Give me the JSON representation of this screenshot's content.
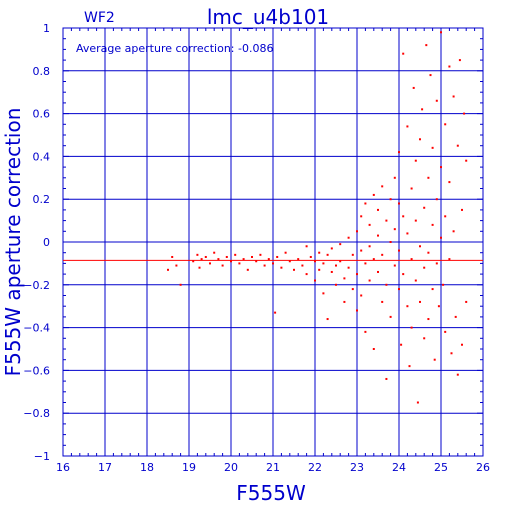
{
  "chart_data": {
    "type": "scatter",
    "title": "lmc_u4b101",
    "chip_label": "WF2",
    "annotation": "Average aperture correction:  -0.086",
    "xlabel": "F555W",
    "ylabel": "F555W aperture correction",
    "xlim": [
      16,
      26
    ],
    "ylim": [
      -1,
      1
    ],
    "x_ticks": [
      16,
      17,
      18,
      19,
      20,
      21,
      22,
      23,
      24,
      25,
      26
    ],
    "y_ticks": [
      -1,
      -0.8,
      -0.6,
      -0.4,
      -0.2,
      0,
      0.2,
      0.4,
      0.6,
      0.8,
      1
    ],
    "x_tick_labels": [
      "16",
      "17",
      "18",
      "19",
      "20",
      "21",
      "22",
      "23",
      "24",
      "25",
      "26"
    ],
    "y_tick_labels": [
      "−1",
      "−0.8",
      "−0.6",
      "−0.4",
      "−0.2",
      "0",
      "0.2",
      "0.4",
      "0.6",
      "0.8",
      "1"
    ],
    "grid": true,
    "average_line": -0.086,
    "colors": {
      "axes": "#0000cc",
      "points": "#ff0000",
      "average_line": "#ff0000"
    },
    "points": [
      [
        18.5,
        -0.13
      ],
      [
        18.6,
        -0.07
      ],
      [
        18.7,
        -0.11
      ],
      [
        18.8,
        -0.2
      ],
      [
        19.1,
        -0.09
      ],
      [
        19.2,
        -0.06
      ],
      [
        19.25,
        -0.12
      ],
      [
        19.3,
        -0.08
      ],
      [
        19.4,
        -0.07
      ],
      [
        19.5,
        -0.1
      ],
      [
        19.6,
        -0.05
      ],
      [
        19.7,
        -0.08
      ],
      [
        19.8,
        -0.11
      ],
      [
        19.9,
        -0.07
      ],
      [
        20.0,
        -0.09
      ],
      [
        20.1,
        -0.06
      ],
      [
        20.2,
        -0.1
      ],
      [
        20.3,
        -0.08
      ],
      [
        20.4,
        -0.13
      ],
      [
        20.5,
        -0.07
      ],
      [
        20.6,
        -0.09
      ],
      [
        20.7,
        -0.06
      ],
      [
        20.8,
        -0.11
      ],
      [
        20.9,
        -0.08
      ],
      [
        21.0,
        -0.1
      ],
      [
        21.05,
        -0.33
      ],
      [
        21.1,
        -0.07
      ],
      [
        21.2,
        -0.12
      ],
      [
        21.3,
        -0.05
      ],
      [
        21.4,
        -0.09
      ],
      [
        21.5,
        -0.13
      ],
      [
        21.6,
        -0.08
      ],
      [
        21.7,
        -0.11
      ],
      [
        21.8,
        -0.02
      ],
      [
        21.8,
        -0.15
      ],
      [
        21.9,
        -0.07
      ],
      [
        22.0,
        -0.18
      ],
      [
        22.0,
        -0.09
      ],
      [
        22.1,
        -0.05
      ],
      [
        22.1,
        -0.13
      ],
      [
        22.2,
        -0.1
      ],
      [
        22.2,
        -0.24
      ],
      [
        22.3,
        -0.06
      ],
      [
        22.3,
        -0.36
      ],
      [
        22.4,
        -0.14
      ],
      [
        22.4,
        -0.03
      ],
      [
        22.5,
        -0.11
      ],
      [
        22.5,
        -0.2
      ],
      [
        22.6,
        -0.01
      ],
      [
        22.6,
        -0.09
      ],
      [
        22.7,
        -0.17
      ],
      [
        22.7,
        -0.28
      ],
      [
        22.8,
        0.02
      ],
      [
        22.8,
        -0.12
      ],
      [
        22.9,
        -0.06
      ],
      [
        22.9,
        -0.22
      ],
      [
        23.0,
        0.05
      ],
      [
        23.0,
        -0.15
      ],
      [
        23.0,
        -0.32
      ],
      [
        23.1,
        -0.04
      ],
      [
        23.1,
        0.12
      ],
      [
        23.1,
        -0.25
      ],
      [
        23.2,
        -0.1
      ],
      [
        23.2,
        0.18
      ],
      [
        23.2,
        -0.42
      ],
      [
        23.3,
        -0.02
      ],
      [
        23.3,
        0.08
      ],
      [
        23.3,
        -0.18
      ],
      [
        23.4,
        0.22
      ],
      [
        23.4,
        -0.08
      ],
      [
        23.4,
        -0.5
      ],
      [
        23.5,
        0.03
      ],
      [
        23.5,
        -0.14
      ],
      [
        23.5,
        0.15
      ],
      [
        23.6,
        -0.28
      ],
      [
        23.6,
        -0.06
      ],
      [
        23.6,
        0.26
      ],
      [
        23.7,
        0.1
      ],
      [
        23.7,
        -0.2
      ],
      [
        23.7,
        -0.64
      ],
      [
        23.8,
        0.0
      ],
      [
        23.8,
        0.2
      ],
      [
        23.8,
        -0.35
      ],
      [
        23.9,
        -0.11
      ],
      [
        23.9,
        0.3
      ],
      [
        23.9,
        0.06
      ],
      [
        24.0,
        -0.04
      ],
      [
        24.0,
        0.18
      ],
      [
        24.0,
        -0.22
      ],
      [
        24.0,
        0.42
      ],
      [
        24.05,
        -0.48
      ],
      [
        24.1,
        0.12
      ],
      [
        24.1,
        -0.15
      ],
      [
        24.1,
        0.88
      ],
      [
        24.2,
        -0.3
      ],
      [
        24.2,
        0.04
      ],
      [
        24.2,
        0.54
      ],
      [
        24.25,
        -0.58
      ],
      [
        24.3,
        0.25
      ],
      [
        24.3,
        -0.08
      ],
      [
        24.3,
        -0.4
      ],
      [
        24.35,
        0.72
      ],
      [
        24.4,
        0.1
      ],
      [
        24.4,
        -0.18
      ],
      [
        24.4,
        0.38
      ],
      [
        24.45,
        -0.75
      ],
      [
        24.5,
        -0.02
      ],
      [
        24.5,
        0.48
      ],
      [
        24.5,
        -0.28
      ],
      [
        24.55,
        0.62
      ],
      [
        24.6,
        0.16
      ],
      [
        24.6,
        -0.12
      ],
      [
        24.6,
        -0.45
      ],
      [
        24.65,
        0.92
      ],
      [
        24.7,
        0.3
      ],
      [
        24.7,
        -0.05
      ],
      [
        24.7,
        -0.36
      ],
      [
        24.75,
        0.78
      ],
      [
        24.8,
        0.08
      ],
      [
        24.8,
        -0.22
      ],
      [
        24.8,
        0.44
      ],
      [
        24.85,
        -0.55
      ],
      [
        24.9,
        0.2
      ],
      [
        24.9,
        -0.1
      ],
      [
        24.9,
        0.66
      ],
      [
        24.95,
        -0.3
      ],
      [
        25.0,
        0.02
      ],
      [
        25.0,
        0.35
      ],
      [
        25.0,
        0.98
      ],
      [
        25.05,
        -0.2
      ],
      [
        25.1,
        0.55
      ],
      [
        25.1,
        -0.42
      ],
      [
        25.1,
        0.12
      ],
      [
        25.2,
        0.82
      ],
      [
        25.2,
        -0.08
      ],
      [
        25.2,
        0.28
      ],
      [
        25.25,
        -0.52
      ],
      [
        25.3,
        0.68
      ],
      [
        25.3,
        0.05
      ],
      [
        25.35,
        -0.35
      ],
      [
        25.4,
        0.45
      ],
      [
        25.4,
        -0.62
      ],
      [
        25.45,
        0.85
      ],
      [
        25.5,
        0.15
      ],
      [
        25.5,
        -0.48
      ],
      [
        25.55,
        0.6
      ],
      [
        25.6,
        -0.28
      ],
      [
        25.6,
        0.38
      ]
    ]
  }
}
